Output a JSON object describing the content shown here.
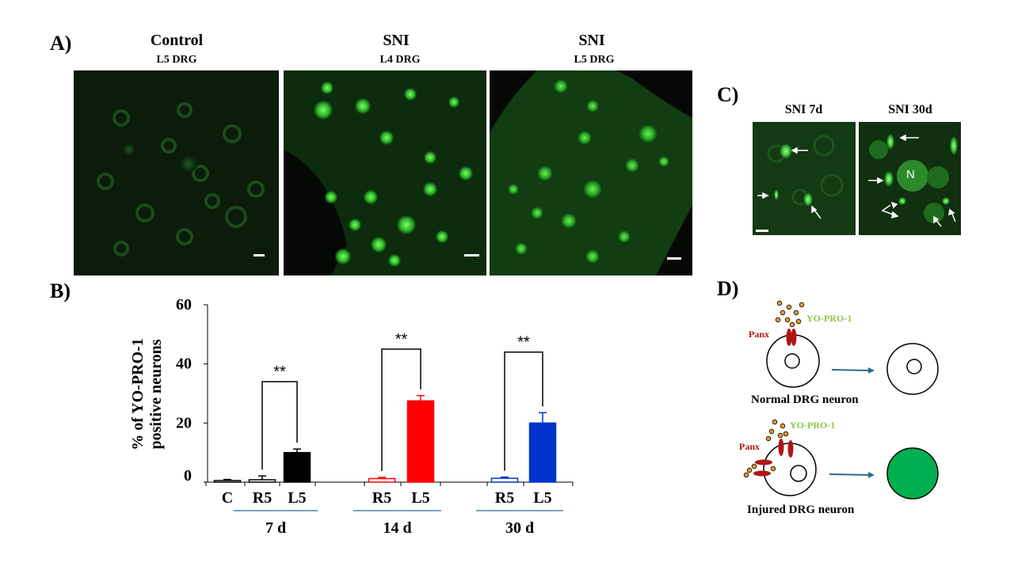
{
  "panels": {
    "A": "A)",
    "B": "B)",
    "C": "C)",
    "D": "D)"
  },
  "panel_a": {
    "images": [
      {
        "title": "Control",
        "subtitle": "L5 DRG"
      },
      {
        "title": "SNI",
        "subtitle": "L4 DRG"
      },
      {
        "title": "SNI",
        "subtitle": "L5 DRG"
      }
    ]
  },
  "panel_c": {
    "images": [
      {
        "title": "SNI 7d"
      },
      {
        "title": "SNI 30d",
        "label": "N"
      }
    ]
  },
  "panel_d": {
    "normal": {
      "probe": "YO-PRO-1",
      "channel": "Panx",
      "caption": "Normal DRG neuron"
    },
    "injured": {
      "probe": "YO-PRO-1",
      "channel": "Panx",
      "caption": "Injured DRG neuron"
    },
    "colors": {
      "channel": "#b01515",
      "probe_text": "#8cc63f",
      "dye_fill": "#e89a2a",
      "arrow": "#2b6c8c",
      "injured_fill": "#00b050"
    }
  },
  "chart_data": {
    "type": "bar",
    "ylabel_line1": "% of YO-PRO-1",
    "ylabel_line2": "positive neurons",
    "ylim": [
      0,
      60
    ],
    "yticks": [
      "0",
      "20",
      "40",
      "60"
    ],
    "categories": [
      "C",
      "R5",
      "L5",
      "R5",
      "L5",
      "R5",
      "L5"
    ],
    "values": [
      0.5,
      0.8,
      10,
      1.2,
      27.5,
      1.3,
      20
    ],
    "errors": [
      0.4,
      1.3,
      1.2,
      0.4,
      1.8,
      0.4,
      3.5
    ],
    "bar_colors": [
      "#000000",
      "#000000",
      "#000000",
      "#ff0000",
      "#ff0000",
      "#0033cc",
      "#0033cc"
    ],
    "bar_fill": [
      "none",
      "none",
      "solid",
      "none",
      "solid",
      "none",
      "solid"
    ],
    "groups": [
      {
        "label": "7 d",
        "from": 1,
        "to": 2
      },
      {
        "label": "14 d",
        "from": 3,
        "to": 4
      },
      {
        "label": "30 d",
        "from": 5,
        "to": 6
      }
    ],
    "significance": [
      {
        "from": 1,
        "to": 2,
        "label": "**",
        "y": 34
      },
      {
        "from": 3,
        "to": 4,
        "label": "**",
        "y": 45
      },
      {
        "from": 5,
        "to": 6,
        "label": "**",
        "y": 44
      }
    ]
  }
}
